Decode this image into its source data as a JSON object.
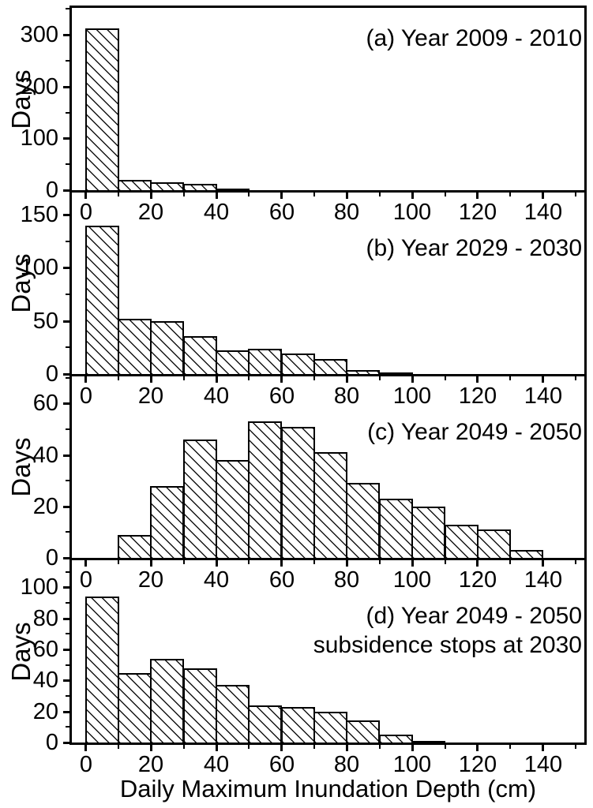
{
  "figure": {
    "xlabel": "Daily Maximum Inundation Depth (cm)",
    "ylabel": "Days"
  },
  "chart_data": {
    "type": "bar",
    "subtype": "histogram, 4 vertically stacked panels sharing one x-axis",
    "title": "",
    "xlabel": "Daily Maximum Inundation Depth (cm)",
    "ylabel": "Days",
    "grid": false,
    "legend": false,
    "bar_fill": "white with black diagonal hatching (\\ direction)",
    "bin_width_cm": 10,
    "bin_start_cm": [
      0,
      10,
      20,
      30,
      40,
      50,
      60,
      70,
      80,
      90,
      100,
      110,
      120,
      130
    ],
    "x_major_ticks": [
      0,
      20,
      40,
      60,
      80,
      100,
      120,
      140
    ],
    "x_minor_step": 10,
    "xlim": [
      -5,
      152
    ],
    "panels": [
      {
        "id": "a",
        "title": "(a) Year 2009 - 2010",
        "subtitle": "",
        "values": [
          312,
          20,
          15,
          12,
          3,
          0,
          0,
          0,
          0,
          0,
          0,
          0,
          0,
          0
        ],
        "yticks": [
          0,
          100,
          200,
          300
        ],
        "y_minor_step": 50,
        "ylim": [
          0,
          352
        ]
      },
      {
        "id": "b",
        "title": "(b) Year 2029 - 2030",
        "subtitle": "",
        "values": [
          140,
          52,
          50,
          36,
          22,
          24,
          19,
          14,
          4,
          1,
          0,
          0,
          0,
          0
        ],
        "yticks": [
          0,
          50,
          100,
          150
        ],
        "y_minor_step": 25,
        "ylim": [
          0,
          171
        ]
      },
      {
        "id": "c",
        "title": "(c) Year 2049 - 2050",
        "subtitle": "",
        "values": [
          0,
          9,
          28,
          46,
          38,
          53,
          51,
          41,
          29,
          23,
          20,
          13,
          11,
          3
        ],
        "yticks": [
          0,
          20,
          40,
          60
        ],
        "y_minor_step": 10,
        "ylim": [
          0,
          70.5
        ]
      },
      {
        "id": "d",
        "title": "(d) Year 2049 - 2050",
        "subtitle": "subsidence stops at 2030",
        "values": [
          94,
          45,
          54,
          48,
          37,
          24,
          23,
          20,
          14,
          5,
          1,
          0,
          0,
          0
        ],
        "yticks": [
          0,
          20,
          40,
          60,
          80,
          100
        ],
        "y_minor_step": 10,
        "ylim": [
          0,
          117.5
        ]
      }
    ]
  }
}
